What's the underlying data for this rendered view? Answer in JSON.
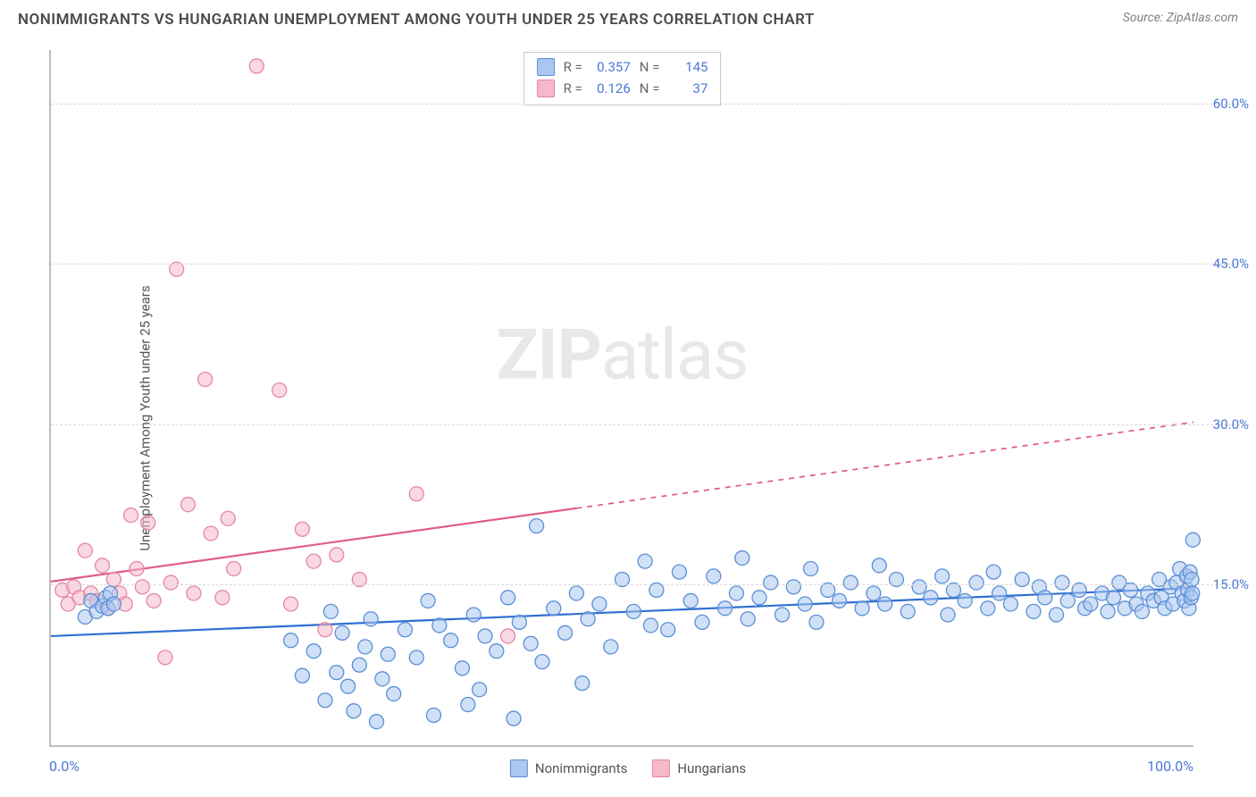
{
  "title": "NONIMMIGRANTS VS HUNGARIAN UNEMPLOYMENT AMONG YOUTH UNDER 25 YEARS CORRELATION CHART",
  "source_label": "Source: ZipAtlas.com",
  "watermark": {
    "bold": "ZIP",
    "light": "atlas"
  },
  "ylabel": "Unemployment Among Youth under 25 years",
  "chart": {
    "type": "scatter",
    "xlim": [
      0,
      100
    ],
    "ylim": [
      0,
      65
    ],
    "xtick_min_label": "0.0%",
    "xtick_max_label": "100.0%",
    "yticks": [
      15,
      30,
      45,
      60
    ],
    "ytick_labels": [
      "15.0%",
      "30.0%",
      "45.0%",
      "60.0%"
    ],
    "grid_color": "#d8d8d8",
    "axis_color": "#bdbdbd",
    "background_color": "#ffffff",
    "tick_font_color": "#4a78d6",
    "label_font_color": "#555555"
  },
  "series": {
    "nonimmigrants": {
      "label": "Nonimmigrants",
      "color_fill": "#a9c7ef",
      "color_stroke": "#5a8fd6",
      "marker_radius": 8,
      "fill_opacity": 0.55,
      "trend": {
        "y_at_x0": 10.2,
        "y_at_x100": 14.7,
        "color": "#2f6fd0",
        "width": 2.2,
        "solid_until_x": 100
      },
      "R": "0.357",
      "N": "145",
      "points": [
        [
          3,
          12
        ],
        [
          3.5,
          13.5
        ],
        [
          4,
          12.5
        ],
        [
          4.5,
          13
        ],
        [
          4.8,
          13.8
        ],
        [
          5,
          12.8
        ],
        [
          5.2,
          14.2
        ],
        [
          5.5,
          13.2
        ],
        [
          21,
          9.8
        ],
        [
          22,
          6.5
        ],
        [
          23,
          8.8
        ],
        [
          24,
          4.2
        ],
        [
          24.5,
          12.5
        ],
        [
          25,
          6.8
        ],
        [
          25.5,
          10.5
        ],
        [
          26,
          5.5
        ],
        [
          26.5,
          3.2
        ],
        [
          27,
          7.5
        ],
        [
          27.5,
          9.2
        ],
        [
          28,
          11.8
        ],
        [
          28.5,
          2.2
        ],
        [
          29,
          6.2
        ],
        [
          29.5,
          8.5
        ],
        [
          30,
          4.8
        ],
        [
          31,
          10.8
        ],
        [
          32,
          8.2
        ],
        [
          33,
          13.5
        ],
        [
          33.5,
          2.8
        ],
        [
          34,
          11.2
        ],
        [
          35,
          9.8
        ],
        [
          36,
          7.2
        ],
        [
          36.5,
          3.8
        ],
        [
          37,
          12.2
        ],
        [
          37.5,
          5.2
        ],
        [
          38,
          10.2
        ],
        [
          39,
          8.8
        ],
        [
          40,
          13.8
        ],
        [
          40.5,
          2.5
        ],
        [
          41,
          11.5
        ],
        [
          42,
          9.5
        ],
        [
          42.5,
          20.5
        ],
        [
          43,
          7.8
        ],
        [
          44,
          12.8
        ],
        [
          45,
          10.5
        ],
        [
          46,
          14.2
        ],
        [
          46.5,
          5.8
        ],
        [
          47,
          11.8
        ],
        [
          48,
          13.2
        ],
        [
          49,
          9.2
        ],
        [
          50,
          15.5
        ],
        [
          51,
          12.5
        ],
        [
          52,
          17.2
        ],
        [
          52.5,
          11.2
        ],
        [
          53,
          14.5
        ],
        [
          54,
          10.8
        ],
        [
          55,
          16.2
        ],
        [
          56,
          13.5
        ],
        [
          57,
          11.5
        ],
        [
          58,
          15.8
        ],
        [
          59,
          12.8
        ],
        [
          60,
          14.2
        ],
        [
          60.5,
          17.5
        ],
        [
          61,
          11.8
        ],
        [
          62,
          13.8
        ],
        [
          63,
          15.2
        ],
        [
          64,
          12.2
        ],
        [
          65,
          14.8
        ],
        [
          66,
          13.2
        ],
        [
          66.5,
          16.5
        ],
        [
          67,
          11.5
        ],
        [
          68,
          14.5
        ],
        [
          69,
          13.5
        ],
        [
          70,
          15.2
        ],
        [
          71,
          12.8
        ],
        [
          72,
          14.2
        ],
        [
          72.5,
          16.8
        ],
        [
          73,
          13.2
        ],
        [
          74,
          15.5
        ],
        [
          75,
          12.5
        ],
        [
          76,
          14.8
        ],
        [
          77,
          13.8
        ],
        [
          78,
          15.8
        ],
        [
          78.5,
          12.2
        ],
        [
          79,
          14.5
        ],
        [
          80,
          13.5
        ],
        [
          81,
          15.2
        ],
        [
          82,
          12.8
        ],
        [
          82.5,
          16.2
        ],
        [
          83,
          14.2
        ],
        [
          84,
          13.2
        ],
        [
          85,
          15.5
        ],
        [
          86,
          12.5
        ],
        [
          86.5,
          14.8
        ],
        [
          87,
          13.8
        ],
        [
          88,
          12.2
        ],
        [
          88.5,
          15.2
        ],
        [
          89,
          13.5
        ],
        [
          90,
          14.5
        ],
        [
          90.5,
          12.8
        ],
        [
          91,
          13.2
        ],
        [
          92,
          14.2
        ],
        [
          92.5,
          12.5
        ],
        [
          93,
          13.8
        ],
        [
          93.5,
          15.2
        ],
        [
          94,
          12.8
        ],
        [
          94.5,
          14.5
        ],
        [
          95,
          13.2
        ],
        [
          95.5,
          12.5
        ],
        [
          96,
          14.2
        ],
        [
          96.5,
          13.5
        ],
        [
          97,
          15.5
        ],
        [
          97.2,
          13.8
        ],
        [
          97.5,
          12.8
        ],
        [
          98,
          14.8
        ],
        [
          98.2,
          13.2
        ],
        [
          98.5,
          15.2
        ],
        [
          98.8,
          16.5
        ],
        [
          99,
          14.2
        ],
        [
          99.2,
          13.5
        ],
        [
          99.4,
          15.8
        ],
        [
          99.5,
          14.5
        ],
        [
          99.6,
          12.8
        ],
        [
          99.7,
          16.2
        ],
        [
          99.8,
          13.8
        ],
        [
          99.85,
          15.5
        ],
        [
          99.9,
          14.2
        ],
        [
          99.95,
          19.2
        ]
      ]
    },
    "hungarians": {
      "label": "Hungarians",
      "color_fill": "#f5b8c9",
      "color_stroke": "#e487a5",
      "marker_radius": 8,
      "fill_opacity": 0.55,
      "trend": {
        "y_at_x0": 15.3,
        "y_at_x100": 30.2,
        "color": "#e05e86",
        "width": 2.2,
        "solid_until_x": 46
      },
      "R": "0.126",
      "N": "37",
      "points": [
        [
          1,
          14.5
        ],
        [
          1.5,
          13.2
        ],
        [
          2,
          14.8
        ],
        [
          2.5,
          13.8
        ],
        [
          3,
          18.2
        ],
        [
          3.5,
          14.2
        ],
        [
          4,
          13.5
        ],
        [
          4.5,
          16.8
        ],
        [
          5,
          12.8
        ],
        [
          5.5,
          15.5
        ],
        [
          6,
          14.2
        ],
        [
          6.5,
          13.2
        ],
        [
          7,
          21.5
        ],
        [
          7.5,
          16.5
        ],
        [
          8,
          14.8
        ],
        [
          8.5,
          20.8
        ],
        [
          9,
          13.5
        ],
        [
          10,
          8.2
        ],
        [
          10.5,
          15.2
        ],
        [
          11,
          44.5
        ],
        [
          12,
          22.5
        ],
        [
          12.5,
          14.2
        ],
        [
          13.5,
          34.2
        ],
        [
          14,
          19.8
        ],
        [
          15,
          13.8
        ],
        [
          15.5,
          21.2
        ],
        [
          16,
          16.5
        ],
        [
          18,
          63.5
        ],
        [
          20,
          33.2
        ],
        [
          21,
          13.2
        ],
        [
          22,
          20.2
        ],
        [
          23,
          17.2
        ],
        [
          24,
          10.8
        ],
        [
          25,
          17.8
        ],
        [
          27,
          15.5
        ],
        [
          32,
          23.5
        ],
        [
          40,
          10.2
        ]
      ]
    }
  },
  "top_legend": {
    "r_prefix": "R = ",
    "n_prefix": "N = "
  },
  "bottom_legend": {
    "series_order": [
      "nonimmigrants",
      "hungarians"
    ]
  }
}
